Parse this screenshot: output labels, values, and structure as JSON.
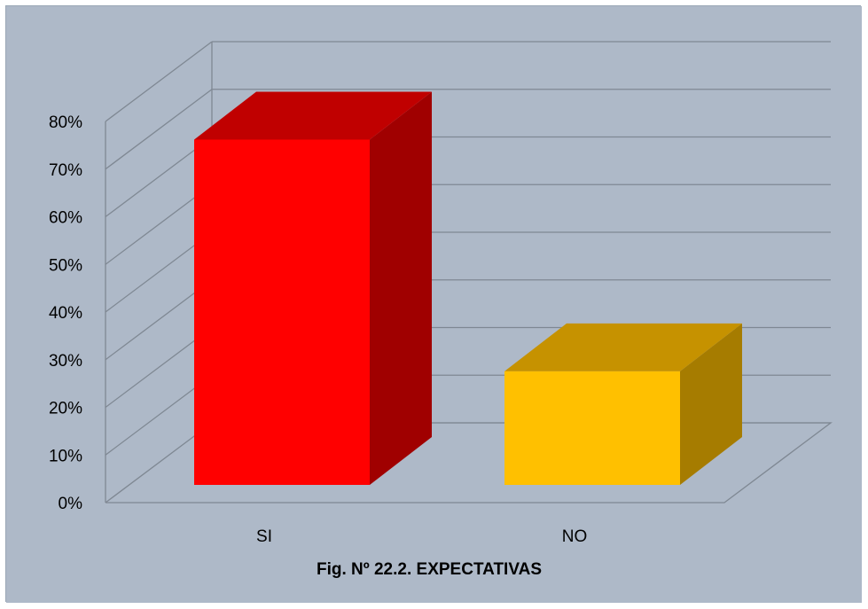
{
  "chart_data": {
    "type": "bar",
    "style": "3d-column",
    "title": "Fig. Nº 22.2. EXPECTATIVAS",
    "categories": [
      "SI",
      "NO"
    ],
    "values": [
      76,
      25
    ],
    "value_unit": "%",
    "ylim": [
      0,
      80
    ],
    "y_ticks": [
      "0%",
      "10%",
      "20%",
      "30%",
      "40%",
      "50%",
      "60%",
      "70%",
      "80%"
    ],
    "grid": true,
    "legend": "none",
    "colors": {
      "background": "#aeb9c8",
      "gridline": "#7f8893",
      "bars": [
        {
          "front": "#ff0000",
          "top": "#c00000",
          "side": "#a00000"
        },
        {
          "front": "#ffc000",
          "top": "#c69200",
          "side": "#a67c00"
        }
      ]
    }
  }
}
